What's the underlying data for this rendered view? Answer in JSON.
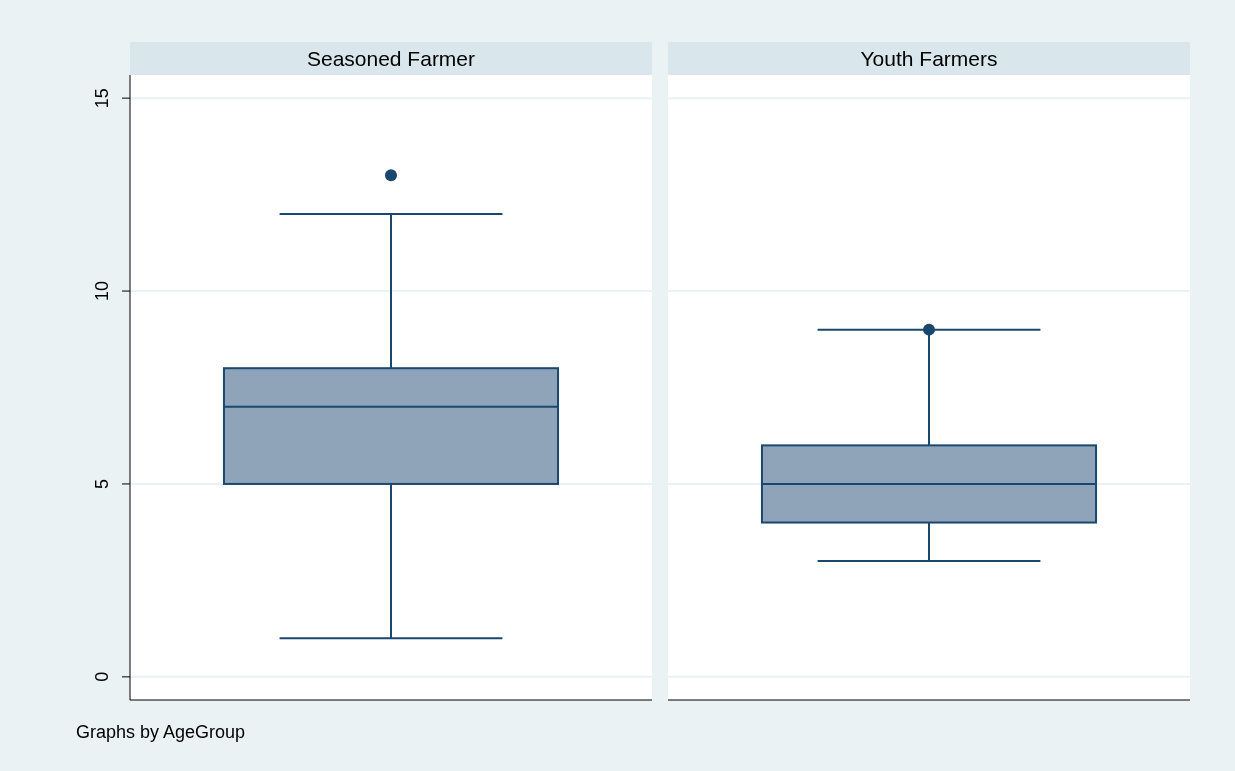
{
  "chart_data": {
    "type": "box",
    "categories": [
      "Seasoned Farmer",
      "Youth Farmers"
    ],
    "color": "#8fa4b8",
    "boxes": [
      {
        "low": 1,
        "q1": 5,
        "median": 7,
        "q3": 8,
        "high": 12,
        "outliers": [
          13
        ]
      },
      {
        "low": 3,
        "q1": 4,
        "median": 5,
        "q3": 6,
        "high": 9,
        "outliers": [
          9
        ]
      }
    ],
    "ylim": [
      -0.6,
      15.6
    ],
    "yticks": [
      0,
      5,
      10,
      15
    ],
    "grid": "y",
    "annotations": [
      "Graphs by AgeGroup"
    ]
  }
}
